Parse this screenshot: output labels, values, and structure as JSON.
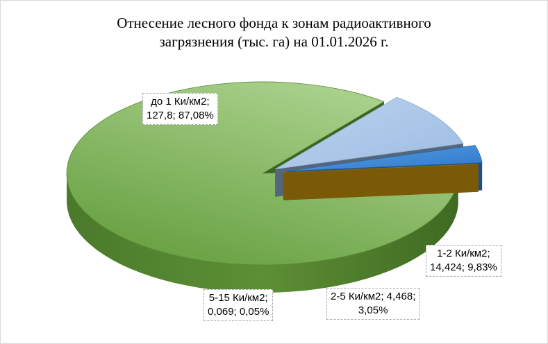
{
  "chart_data": {
    "type": "pie",
    "title": "Отнесение лесного фонда к зонам радиоактивного загрязнения  (тыс. га) на 01.01.2026  г.",
    "title_lines": [
      "Отнесение лесного фонда к зонам радиоактивного",
      "загрязнения  (тыс. га) на 01.01.2026  г."
    ],
    "style": "3d-exploded",
    "slices": [
      {
        "name": "до 1 Ки/км2",
        "value": 127.8,
        "percent": 87.08,
        "label_lines": [
          "до 1 Ки/км2;",
          "127,8; 87,08%"
        ],
        "color": "#78ab4a"
      },
      {
        "name": "1-2 Ки/км2",
        "value": 14.424,
        "percent": 9.83,
        "label_lines": [
          "1-2 Ки/км2;",
          "14,424; 9,83%"
        ],
        "color": "#a9c5e8"
      },
      {
        "name": "2-5 Ки/км2",
        "value": 4.468,
        "percent": 3.05,
        "label_lines": [
          "2-5 Ки/км2; 4,468;",
          "3,05%"
        ],
        "color": "#3f87d6"
      },
      {
        "name": "5-15 Ки/км2",
        "value": 0.069,
        "percent": 0.05,
        "label_lines": [
          "5-15 Ки/км2;",
          "0,069; 0,05%"
        ],
        "color": "#b58a10"
      }
    ]
  }
}
